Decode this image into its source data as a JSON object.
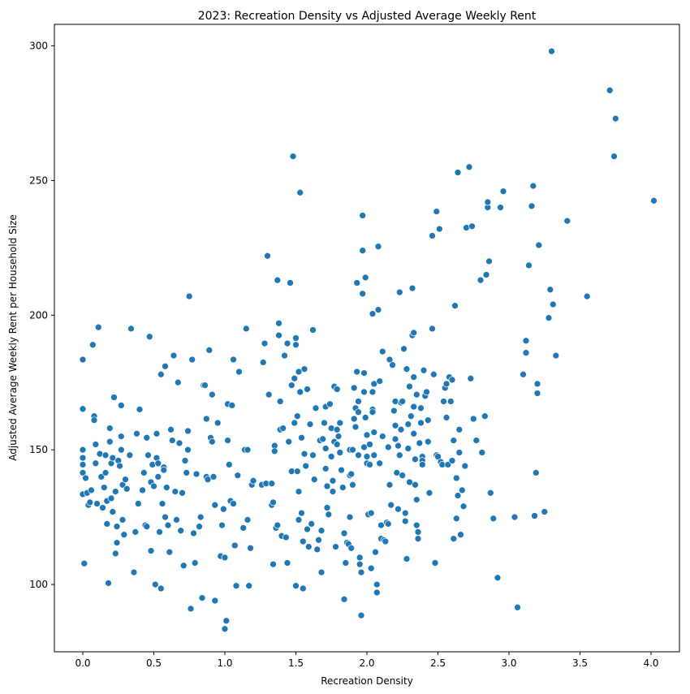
{
  "chart_data": {
    "type": "scatter",
    "title": "2023: Recreation Density vs Adjusted Average Weekly Rent",
    "xlabel": "Recreation Density",
    "ylabel": "Adjusted Average Weekly Rent per Household Size",
    "xlim": [
      -0.2,
      4.2
    ],
    "ylim": [
      75,
      308
    ],
    "xticks": [
      0.0,
      0.5,
      1.0,
      1.5,
      2.0,
      2.5,
      3.0,
      3.5,
      4.0
    ],
    "xtick_labels": [
      "0.0",
      "0.5",
      "1.0",
      "1.5",
      "2.0",
      "2.5",
      "3.0",
      "3.5",
      "4.0"
    ],
    "yticks": [
      100,
      150,
      200,
      250,
      300
    ],
    "ytick_labels": [
      "100",
      "150",
      "200",
      "250",
      "300"
    ],
    "grid": false,
    "marker_color": "#1f77b4",
    "marker_edge_color": "#ffffff",
    "points": [
      [
        0.0,
        183.5
      ],
      [
        0.0,
        165.2
      ],
      [
        0.0,
        150.0
      ],
      [
        0.0,
        147.0
      ],
      [
        0.0,
        144.5
      ],
      [
        0.0,
        141.5
      ],
      [
        0.0,
        133.5
      ],
      [
        0.01,
        107.8
      ],
      [
        0.02,
        139.5
      ],
      [
        0.03,
        134.0
      ],
      [
        0.04,
        129.5
      ],
      [
        0.05,
        130.5
      ],
      [
        0.06,
        135.0
      ],
      [
        0.07,
        189.0
      ],
      [
        0.08,
        162.5
      ],
      [
        0.08,
        161.0
      ],
      [
        0.09,
        152.0
      ],
      [
        0.09,
        145.0
      ],
      [
        0.1,
        130.0
      ],
      [
        0.11,
        195.5
      ],
      [
        0.12,
        148.5
      ],
      [
        0.13,
        140.0
      ],
      [
        0.14,
        128.5
      ],
      [
        0.15,
        136.0
      ],
      [
        0.16,
        148.0
      ],
      [
        0.16,
        141.5
      ],
      [
        0.17,
        131.0
      ],
      [
        0.17,
        122.5
      ],
      [
        0.18,
        100.5
      ],
      [
        0.19,
        158.0
      ],
      [
        0.19,
        153.0
      ],
      [
        0.2,
        145.0
      ],
      [
        0.2,
        132.0
      ],
      [
        0.21,
        147.0
      ],
      [
        0.21,
        127.0
      ],
      [
        0.22,
        169.5
      ],
      [
        0.23,
        134.5
      ],
      [
        0.23,
        111.5
      ],
      [
        0.24,
        121.5
      ],
      [
        0.24,
        115.5
      ],
      [
        0.25,
        146.0
      ],
      [
        0.26,
        144.0
      ],
      [
        0.27,
        166.5
      ],
      [
        0.27,
        155.0
      ],
      [
        0.27,
        150.0
      ],
      [
        0.28,
        137.0
      ],
      [
        0.28,
        124.0
      ],
      [
        0.29,
        118.5
      ],
      [
        0.3,
        139.0
      ],
      [
        0.31,
        135.5
      ],
      [
        0.33,
        148.0
      ],
      [
        0.34,
        195.0
      ],
      [
        0.36,
        104.5
      ],
      [
        0.37,
        119.5
      ],
      [
        0.38,
        156.0
      ],
      [
        0.39,
        130.0
      ],
      [
        0.4,
        165.0
      ],
      [
        0.42,
        135.0
      ],
      [
        0.43,
        141.5
      ],
      [
        0.44,
        122.0
      ],
      [
        0.45,
        154.5
      ],
      [
        0.45,
        121.5
      ],
      [
        0.46,
        148.0
      ],
      [
        0.47,
        192.0
      ],
      [
        0.48,
        138.0
      ],
      [
        0.48,
        112.5
      ],
      [
        0.49,
        144.5
      ],
      [
        0.5,
        136.5
      ],
      [
        0.51,
        100.0
      ],
      [
        0.52,
        156.0
      ],
      [
        0.52,
        147.0
      ],
      [
        0.53,
        145.0
      ],
      [
        0.53,
        140.0
      ],
      [
        0.54,
        119.5
      ],
      [
        0.55,
        98.5
      ],
      [
        0.55,
        178.0
      ],
      [
        0.56,
        130.0
      ],
      [
        0.57,
        143.5
      ],
      [
        0.57,
        142.5
      ],
      [
        0.58,
        181.0
      ],
      [
        0.58,
        125.0
      ],
      [
        0.59,
        136.0
      ],
      [
        0.6,
        122.0
      ],
      [
        0.61,
        112.0
      ],
      [
        0.62,
        157.5
      ],
      [
        0.63,
        153.5
      ],
      [
        0.64,
        185.0
      ],
      [
        0.65,
        134.5
      ],
      [
        0.66,
        124.0
      ],
      [
        0.67,
        175.0
      ],
      [
        0.68,
        152.5
      ],
      [
        0.69,
        120.0
      ],
      [
        0.7,
        134.0
      ],
      [
        0.71,
        107.0
      ],
      [
        0.72,
        146.0
      ],
      [
        0.73,
        141.5
      ],
      [
        0.74,
        157.0
      ],
      [
        0.74,
        150.0
      ],
      [
        0.75,
        207.0
      ],
      [
        0.76,
        91.0
      ],
      [
        0.77,
        183.5
      ],
      [
        0.78,
        119.0
      ],
      [
        0.79,
        108.0
      ],
      [
        0.8,
        141.0
      ],
      [
        0.82,
        121.5
      ],
      [
        0.83,
        125.0
      ],
      [
        0.84,
        95.0
      ],
      [
        0.85,
        174.0
      ],
      [
        0.86,
        174.0
      ],
      [
        0.87,
        161.5
      ],
      [
        0.87,
        140.0
      ],
      [
        0.88,
        139.0
      ],
      [
        0.89,
        187.0
      ],
      [
        0.9,
        154.5
      ],
      [
        0.91,
        153.0
      ],
      [
        0.91,
        170.5
      ],
      [
        0.92,
        140.0
      ],
      [
        0.93,
        129.5
      ],
      [
        0.93,
        94.0
      ],
      [
        0.95,
        160.0
      ],
      [
        0.97,
        110.5
      ],
      [
        0.98,
        122.0
      ],
      [
        0.99,
        128.0
      ],
      [
        1.0,
        83.5
      ],
      [
        1.0,
        110.0
      ],
      [
        1.01,
        86.5
      ],
      [
        1.02,
        153.5
      ],
      [
        1.02,
        167.0
      ],
      [
        1.03,
        144.5
      ],
      [
        1.04,
        131.0
      ],
      [
        1.05,
        166.5
      ],
      [
        1.06,
        130.0
      ],
      [
        1.06,
        183.5
      ],
      [
        1.07,
        114.5
      ],
      [
        1.08,
        99.5
      ],
      [
        1.09,
        140.5
      ],
      [
        1.1,
        179.0
      ],
      [
        1.13,
        121.0
      ],
      [
        1.14,
        150.0
      ],
      [
        1.15,
        195.0
      ],
      [
        1.16,
        150.0
      ],
      [
        1.16,
        124.0
      ],
      [
        1.17,
        99.5
      ],
      [
        1.18,
        113.5
      ],
      [
        1.19,
        137.0
      ],
      [
        1.2,
        138.5
      ],
      [
        1.26,
        137.0
      ],
      [
        1.27,
        182.5
      ],
      [
        1.28,
        189.5
      ],
      [
        1.29,
        137.5
      ],
      [
        1.3,
        222.0
      ],
      [
        1.31,
        170.5
      ],
      [
        1.33,
        137.5
      ],
      [
        1.33,
        129.5
      ],
      [
        1.34,
        130.5
      ],
      [
        1.34,
        107.5
      ],
      [
        1.35,
        151.5
      ],
      [
        1.35,
        149.5
      ],
      [
        1.36,
        121.0
      ],
      [
        1.37,
        213.0
      ],
      [
        1.37,
        122.0
      ],
      [
        1.38,
        197.0
      ],
      [
        1.38,
        192.5
      ],
      [
        1.39,
        168.0
      ],
      [
        1.39,
        157.5
      ],
      [
        1.4,
        118.0
      ],
      [
        1.41,
        158.0
      ],
      [
        1.42,
        185.0
      ],
      [
        1.43,
        117.5
      ],
      [
        1.44,
        189.5
      ],
      [
        1.44,
        108.0
      ],
      [
        1.45,
        153.0
      ],
      [
        1.46,
        212.0
      ],
      [
        1.47,
        142.0
      ],
      [
        1.47,
        174.0
      ],
      [
        1.48,
        259.0
      ],
      [
        1.49,
        176.5
      ],
      [
        1.49,
        160.0
      ],
      [
        1.5,
        191.5
      ],
      [
        1.5,
        189.0
      ],
      [
        1.5,
        99.5
      ],
      [
        1.51,
        162.5
      ],
      [
        1.51,
        142.0
      ],
      [
        1.52,
        134.5
      ],
      [
        1.52,
        124.0
      ],
      [
        1.52,
        179.0
      ],
      [
        1.53,
        245.5
      ],
      [
        1.53,
        171.5
      ],
      [
        1.54,
        154.5
      ],
      [
        1.54,
        126.5
      ],
      [
        1.55,
        116.0
      ],
      [
        1.55,
        98.5
      ],
      [
        1.56,
        180.0
      ],
      [
        1.56,
        148.5
      ],
      [
        1.57,
        144.0
      ],
      [
        1.58,
        172.5
      ],
      [
        1.58,
        120.5
      ],
      [
        1.59,
        114.0
      ],
      [
        1.6,
        159.5
      ],
      [
        1.61,
        122.5
      ],
      [
        1.62,
        194.5
      ],
      [
        1.62,
        148.0
      ],
      [
        1.63,
        139.0
      ],
      [
        1.64,
        165.5
      ],
      [
        1.65,
        113.0
      ],
      [
        1.66,
        116.5
      ],
      [
        1.67,
        153.5
      ],
      [
        1.68,
        120.0
      ],
      [
        1.68,
        104.5
      ],
      [
        1.69,
        154.0
      ],
      [
        1.7,
        160.0
      ],
      [
        1.71,
        150.5
      ],
      [
        1.71,
        166.0
      ],
      [
        1.71,
        143.0
      ],
      [
        1.72,
        136.5
      ],
      [
        1.72,
        128.5
      ],
      [
        1.73,
        126.0
      ],
      [
        1.74,
        167.0
      ],
      [
        1.75,
        158.0
      ],
      [
        1.75,
        147.5
      ],
      [
        1.76,
        134.5
      ],
      [
        1.76,
        138.5
      ],
      [
        1.77,
        173.5
      ],
      [
        1.77,
        153.0
      ],
      [
        1.78,
        114.0
      ],
      [
        1.79,
        157.5
      ],
      [
        1.79,
        172.5
      ],
      [
        1.79,
        152.0
      ],
      [
        1.8,
        155.0
      ],
      [
        1.81,
        160.0
      ],
      [
        1.81,
        149.0
      ],
      [
        1.82,
        142.5
      ],
      [
        1.83,
        136.0
      ],
      [
        1.84,
        94.5
      ],
      [
        1.84,
        119.0
      ],
      [
        1.85,
        108.0
      ],
      [
        1.86,
        115.5
      ],
      [
        1.87,
        115.0
      ],
      [
        1.88,
        140.5
      ],
      [
        1.88,
        150.0
      ],
      [
        1.88,
        125.0
      ],
      [
        1.89,
        113.5
      ],
      [
        1.89,
        141.0
      ],
      [
        1.9,
        150.0
      ],
      [
        1.9,
        137.0
      ],
      [
        1.91,
        173.0
      ],
      [
        1.91,
        161.5
      ],
      [
        1.92,
        165.5
      ],
      [
        1.92,
        158.5
      ],
      [
        1.93,
        212.0
      ],
      [
        1.93,
        179.0
      ],
      [
        1.94,
        168.0
      ],
      [
        1.94,
        164.0
      ],
      [
        1.94,
        148.0
      ],
      [
        1.95,
        110.0
      ],
      [
        1.95,
        107.5
      ],
      [
        1.96,
        104.5
      ],
      [
        1.96,
        88.5
      ],
      [
        1.97,
        224.0
      ],
      [
        1.97,
        237.0
      ],
      [
        1.97,
        208.0
      ],
      [
        1.98,
        171.5
      ],
      [
        1.98,
        178.5
      ],
      [
        1.98,
        151.0
      ],
      [
        1.99,
        214.0
      ],
      [
        1.99,
        162.0
      ],
      [
        2.0,
        155.5
      ],
      [
        2.0,
        147.5
      ],
      [
        2.0,
        145.0
      ],
      [
        2.01,
        126.0
      ],
      [
        2.02,
        152.0
      ],
      [
        2.02,
        144.5
      ],
      [
        2.03,
        126.5
      ],
      [
        2.03,
        106.0
      ],
      [
        2.04,
        200.5
      ],
      [
        2.04,
        171.5
      ],
      [
        2.04,
        165.0
      ],
      [
        2.04,
        164.0
      ],
      [
        2.05,
        174.5
      ],
      [
        2.05,
        156.5
      ],
      [
        2.05,
        148.0
      ],
      [
        2.06,
        112.0
      ],
      [
        2.07,
        100.0
      ],
      [
        2.07,
        97.0
      ],
      [
        2.08,
        225.5
      ],
      [
        2.08,
        202.0
      ],
      [
        2.09,
        175.5
      ],
      [
        2.09,
        145.0
      ],
      [
        2.1,
        122.0
      ],
      [
        2.1,
        117.0
      ],
      [
        2.11,
        186.5
      ],
      [
        2.11,
        155.0
      ],
      [
        2.12,
        116.5
      ],
      [
        2.13,
        116.0
      ],
      [
        2.14,
        123.0
      ],
      [
        2.15,
        151.0
      ],
      [
        2.15,
        122.5
      ],
      [
        2.16,
        183.5
      ],
      [
        2.16,
        137.0
      ],
      [
        2.17,
        129.5
      ],
      [
        2.18,
        181.5
      ],
      [
        2.19,
        164.5
      ],
      [
        2.2,
        168.0
      ],
      [
        2.2,
        159.0
      ],
      [
        2.2,
        154.0
      ],
      [
        2.21,
        141.5
      ],
      [
        2.22,
        151.5
      ],
      [
        2.22,
        128.0
      ],
      [
        2.23,
        208.5
      ],
      [
        2.23,
        148.0
      ],
      [
        2.24,
        167.5
      ],
      [
        2.24,
        157.5
      ],
      [
        2.25,
        168.0
      ],
      [
        2.25,
        140.5
      ],
      [
        2.26,
        187.5
      ],
      [
        2.27,
        126.5
      ],
      [
        2.27,
        123.5
      ],
      [
        2.28,
        180.0
      ],
      [
        2.28,
        109.5
      ],
      [
        2.29,
        159.5
      ],
      [
        2.29,
        150.5
      ],
      [
        2.3,
        173.5
      ],
      [
        2.3,
        138.0
      ],
      [
        2.31,
        162.5
      ],
      [
        2.32,
        210.0
      ],
      [
        2.32,
        192.5
      ],
      [
        2.33,
        193.5
      ],
      [
        2.33,
        177.0
      ],
      [
        2.33,
        166.0
      ],
      [
        2.33,
        156.0
      ],
      [
        2.34,
        146.5
      ],
      [
        2.34,
        137.0
      ],
      [
        2.35,
        170.5
      ],
      [
        2.35,
        131.5
      ],
      [
        2.35,
        122.0
      ],
      [
        2.36,
        119.5
      ],
      [
        2.36,
        117.0
      ],
      [
        2.37,
        152.5
      ],
      [
        2.38,
        165.5
      ],
      [
        2.38,
        160.0
      ],
      [
        2.39,
        147.5
      ],
      [
        2.39,
        146.0
      ],
      [
        2.39,
        144.5
      ],
      [
        2.4,
        179.5
      ],
      [
        2.41,
        170.0
      ],
      [
        2.42,
        171.5
      ],
      [
        2.43,
        161.0
      ],
      [
        2.43,
        153.0
      ],
      [
        2.44,
        134.0
      ],
      [
        2.46,
        195.0
      ],
      [
        2.46,
        229.5
      ],
      [
        2.47,
        178.0
      ],
      [
        2.48,
        108.0
      ],
      [
        2.49,
        238.5
      ],
      [
        2.49,
        148.0
      ],
      [
        2.5,
        147.5
      ],
      [
        2.51,
        232.0
      ],
      [
        2.52,
        145.5
      ],
      [
        2.53,
        144.5
      ],
      [
        2.54,
        168.0
      ],
      [
        2.55,
        173.0
      ],
      [
        2.56,
        162.0
      ],
      [
        2.56,
        174.5
      ],
      [
        2.57,
        144.5
      ],
      [
        2.58,
        177.0
      ],
      [
        2.59,
        168.0
      ],
      [
        2.6,
        176.0
      ],
      [
        2.6,
        146.0
      ],
      [
        2.61,
        117.0
      ],
      [
        2.61,
        153.5
      ],
      [
        2.62,
        203.5
      ],
      [
        2.63,
        139.5
      ],
      [
        2.63,
        124.5
      ],
      [
        2.64,
        253.0
      ],
      [
        2.64,
        133.0
      ],
      [
        2.65,
        157.5
      ],
      [
        2.65,
        149.0
      ],
      [
        2.66,
        118.5
      ],
      [
        2.67,
        135.0
      ],
      [
        2.68,
        129.0
      ],
      [
        2.69,
        144.0
      ],
      [
        2.7,
        232.5
      ],
      [
        2.72,
        255.0
      ],
      [
        2.73,
        176.5
      ],
      [
        2.74,
        233.0
      ],
      [
        2.75,
        161.5
      ],
      [
        2.77,
        153.5
      ],
      [
        2.8,
        213.0
      ],
      [
        2.81,
        149.0
      ],
      [
        2.83,
        162.5
      ],
      [
        2.84,
        215.0
      ],
      [
        2.85,
        240.0
      ],
      [
        2.85,
        242.0
      ],
      [
        2.86,
        220.0
      ],
      [
        2.87,
        134.0
      ],
      [
        2.89,
        124.5
      ],
      [
        2.92,
        102.5
      ],
      [
        2.94,
        240.0
      ],
      [
        2.96,
        246.0
      ],
      [
        3.04,
        125.0
      ],
      [
        3.06,
        91.5
      ],
      [
        3.1,
        178.0
      ],
      [
        3.12,
        190.5
      ],
      [
        3.12,
        186.0
      ],
      [
        3.14,
        218.5
      ],
      [
        3.16,
        240.5
      ],
      [
        3.17,
        248.0
      ],
      [
        3.18,
        125.5
      ],
      [
        3.19,
        141.5
      ],
      [
        3.2,
        174.5
      ],
      [
        3.2,
        171.0
      ],
      [
        3.21,
        226.0
      ],
      [
        3.25,
        127.0
      ],
      [
        3.28,
        199.0
      ],
      [
        3.29,
        209.5
      ],
      [
        3.3,
        298.0
      ],
      [
        3.31,
        204.0
      ],
      [
        3.33,
        185.0
      ],
      [
        3.41,
        235.0
      ],
      [
        3.55,
        207.0
      ],
      [
        3.71,
        283.5
      ],
      [
        3.74,
        259.0
      ],
      [
        3.75,
        273.0
      ],
      [
        4.02,
        242.5
      ]
    ]
  }
}
